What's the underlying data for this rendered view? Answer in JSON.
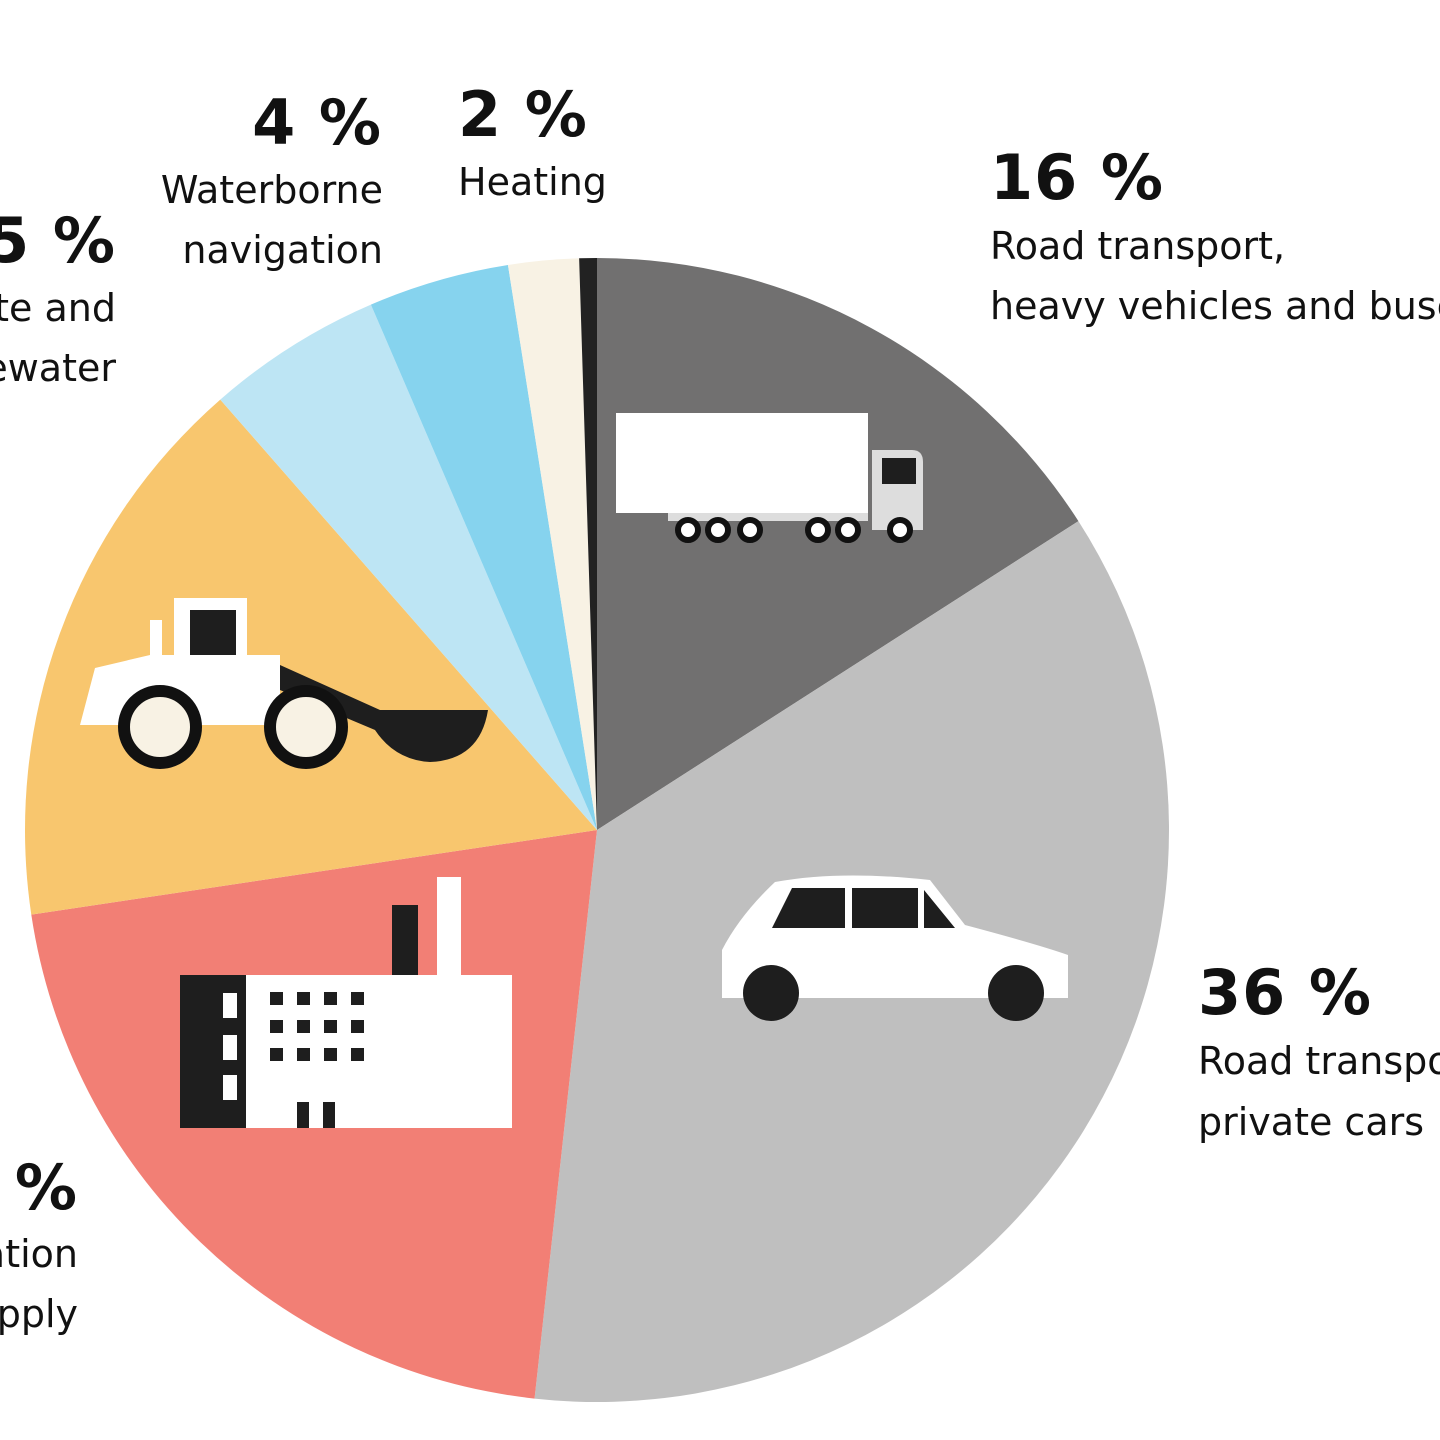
{
  "chart_data": {
    "type": "pie",
    "start": "top, clockwise",
    "slices": [
      {
        "key": "heavy",
        "value": 16,
        "color": "#717070",
        "pct_label": "16 %",
        "label_lines": [
          "Road transport,",
          "heavy vehicles and buse"
        ],
        "icon": "truck-icon"
      },
      {
        "key": "cars",
        "value": 36,
        "color": "#bfbfbf",
        "pct_label": "36 %",
        "label_lines": [
          "Road transpo",
          "private cars"
        ],
        "icon": "car-icon"
      },
      {
        "key": "energy",
        "value": 21,
        "color": "#f27f75",
        "pct_label": "%",
        "label_lines": [
          "ation",
          "pply"
        ],
        "icon": "factory-icon"
      },
      {
        "key": "machinery",
        "value": 16,
        "color": "#f8c66e",
        "icon": "wheel-loader-icon"
      },
      {
        "key": "waste",
        "value": 5,
        "color": "#bde5f4",
        "pct_label": "5 %",
        "label_lines": [
          "te and",
          "ewater"
        ]
      },
      {
        "key": "waterborne",
        "value": 4,
        "color": "#86d3ee",
        "pct_label": "4 %",
        "label_lines": [
          "Waterborne",
          "navigation"
        ]
      },
      {
        "key": "heating",
        "value": 2,
        "color": "#f8f2e4",
        "pct_label": "2 %",
        "label_lines": [
          "Heating"
        ]
      },
      {
        "key": "other",
        "value": 0.5,
        "color": "#222222"
      }
    ]
  }
}
